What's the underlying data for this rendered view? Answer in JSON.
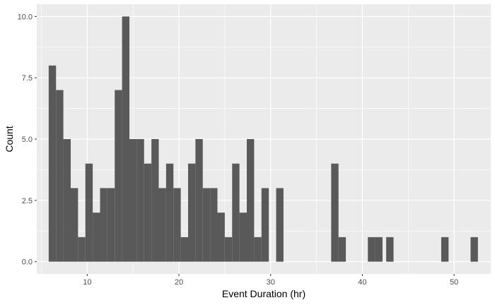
{
  "chart_data": {
    "type": "bar",
    "subtype": "histogram",
    "xlabel": "Event Duration (hr)",
    "ylabel": "Count",
    "xlim": [
      4.5,
      54.0
    ],
    "ylim": [
      -0.5,
      10.5
    ],
    "x_ticks": [
      10,
      20,
      30,
      40,
      50
    ],
    "x_tick_labels": [
      "10",
      "20",
      "30",
      "40",
      "50"
    ],
    "y_ticks": [
      0,
      2.5,
      5,
      7.5,
      10
    ],
    "y_tick_labels": [
      "0.0",
      "2.5",
      "5.0",
      "7.5",
      "10.0"
    ],
    "grid": true,
    "panel_color": "#ebebeb",
    "bar_color": "#595959",
    "bins": [
      {
        "x0": 5.8,
        "x1": 6.6,
        "count": 8
      },
      {
        "x0": 6.6,
        "x1": 7.4,
        "count": 7
      },
      {
        "x0": 7.4,
        "x1": 8.2,
        "count": 5
      },
      {
        "x0": 8.2,
        "x1": 9.0,
        "count": 3
      },
      {
        "x0": 9.0,
        "x1": 9.8,
        "count": 1
      },
      {
        "x0": 9.8,
        "x1": 10.6,
        "count": 4
      },
      {
        "x0": 10.6,
        "x1": 11.4,
        "count": 2
      },
      {
        "x0": 11.4,
        "x1": 12.2,
        "count": 3
      },
      {
        "x0": 12.2,
        "x1": 13.0,
        "count": 3
      },
      {
        "x0": 13.0,
        "x1": 13.8,
        "count": 7
      },
      {
        "x0": 13.8,
        "x1": 14.6,
        "count": 10
      },
      {
        "x0": 14.6,
        "x1": 15.4,
        "count": 5
      },
      {
        "x0": 15.4,
        "x1": 16.2,
        "count": 5
      },
      {
        "x0": 16.2,
        "x1": 17.0,
        "count": 4
      },
      {
        "x0": 17.0,
        "x1": 17.8,
        "count": 5
      },
      {
        "x0": 17.8,
        "x1": 18.6,
        "count": 3
      },
      {
        "x0": 18.6,
        "x1": 19.4,
        "count": 4
      },
      {
        "x0": 19.4,
        "x1": 20.2,
        "count": 3
      },
      {
        "x0": 20.2,
        "x1": 21.0,
        "count": 1
      },
      {
        "x0": 21.0,
        "x1": 21.8,
        "count": 4
      },
      {
        "x0": 21.8,
        "x1": 22.6,
        "count": 5
      },
      {
        "x0": 22.6,
        "x1": 23.4,
        "count": 3
      },
      {
        "x0": 23.4,
        "x1": 24.2,
        "count": 3
      },
      {
        "x0": 24.2,
        "x1": 25.0,
        "count": 2
      },
      {
        "x0": 25.0,
        "x1": 25.8,
        "count": 1
      },
      {
        "x0": 25.8,
        "x1": 26.6,
        "count": 4
      },
      {
        "x0": 26.6,
        "x1": 27.4,
        "count": 2
      },
      {
        "x0": 27.4,
        "x1": 28.2,
        "count": 5
      },
      {
        "x0": 28.2,
        "x1": 29.0,
        "count": 1
      },
      {
        "x0": 29.0,
        "x1": 29.8,
        "count": 3
      },
      {
        "x0": 29.8,
        "x1": 30.6,
        "count": 0
      },
      {
        "x0": 30.6,
        "x1": 31.4,
        "count": 3
      },
      {
        "x0": 36.6,
        "x1": 37.4,
        "count": 4
      },
      {
        "x0": 37.4,
        "x1": 38.2,
        "count": 1
      },
      {
        "x0": 40.6,
        "x1": 41.4,
        "count": 1
      },
      {
        "x0": 41.4,
        "x1": 42.2,
        "count": 1
      },
      {
        "x0": 42.6,
        "x1": 43.4,
        "count": 1
      },
      {
        "x0": 48.6,
        "x1": 49.4,
        "count": 1
      },
      {
        "x0": 51.8,
        "x1": 52.6,
        "count": 1
      }
    ]
  }
}
